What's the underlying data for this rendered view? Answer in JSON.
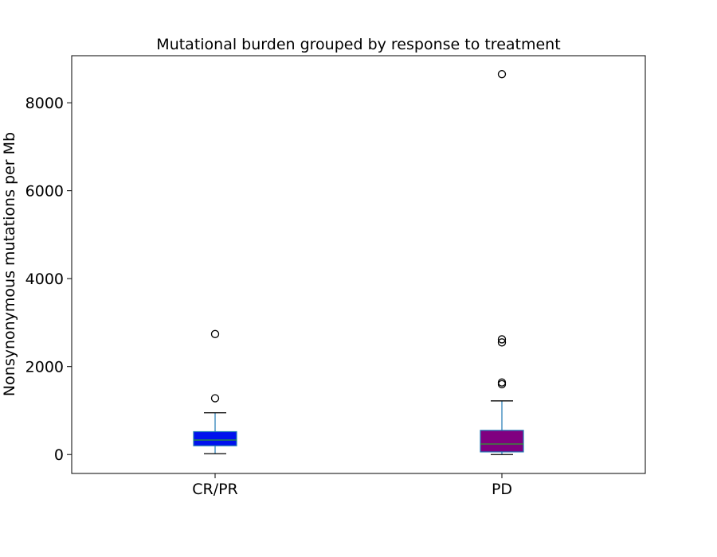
{
  "chart_data": {
    "type": "box",
    "title": "Mutational burden grouped by response to treatment",
    "xlabel": "",
    "ylabel": "Nonsynonymous mutations per Mb",
    "ylim": [
      -430,
      9070
    ],
    "yticks": [
      0,
      2000,
      4000,
      6000,
      8000
    ],
    "grid": false,
    "groups": [
      {
        "label": "CR/PR",
        "fill": "#0011ee",
        "whisker_low": 20,
        "q1": 200,
        "median": 330,
        "q3": 520,
        "whisker_high": 950,
        "outliers": [
          1280,
          2740
        ]
      },
      {
        "label": "PD",
        "fill": "#800080",
        "whisker_low": 0,
        "q1": 60,
        "median": 240,
        "q3": 550,
        "whisker_high": 1220,
        "outliers": [
          1600,
          1640,
          2550,
          2620,
          8650
        ]
      }
    ],
    "colors": {
      "box_edge": "#1f77b4",
      "whisker": "#1f77b4",
      "cap": "#000000",
      "median": "#2ca02c",
      "outlier_edge": "#000000"
    }
  }
}
